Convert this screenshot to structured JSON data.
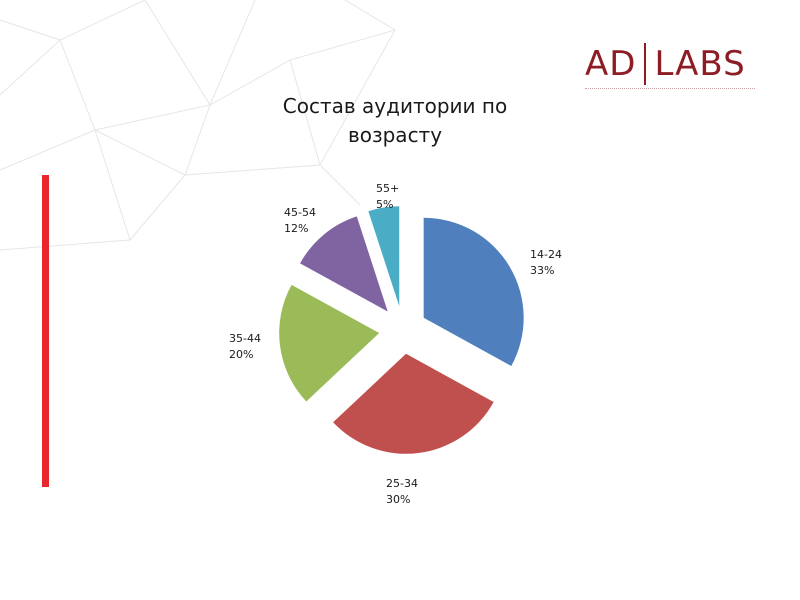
{
  "logo": {
    "left": "AD",
    "right": "LABS"
  },
  "chart_data": {
    "type": "pie",
    "title_line1": "Состав аудитории по",
    "title_line2": "возрасту",
    "slices": [
      {
        "name": "14-24",
        "value": 33,
        "label": "33%",
        "color": "#4f7fbd"
      },
      {
        "name": "25-34",
        "value": 30,
        "label": "30%",
        "color": "#c0504d"
      },
      {
        "name": "35-44",
        "value": 20,
        "label": "20%",
        "color": "#9bbb59"
      },
      {
        "name": "45-54",
        "value": 12,
        "label": "12%",
        "color": "#8064a2"
      },
      {
        "name": "55+",
        "value": 5,
        "label": "5%",
        "color": "#4bacc6"
      }
    ]
  }
}
